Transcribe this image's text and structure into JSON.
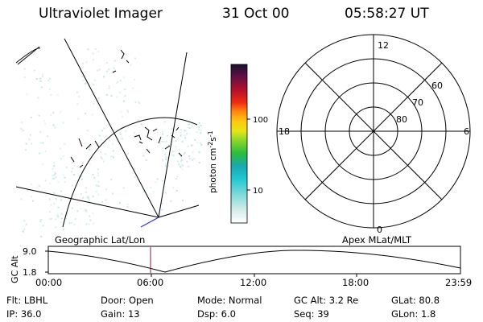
{
  "header": {
    "instrument": "Ultraviolet Imager",
    "date": "31 Oct 00",
    "time": "05:58:27 UT"
  },
  "colorbar": {
    "unit_label": "photon cm",
    "unit_sup1": "-2",
    "unit_s": "s",
    "unit_sup2": "-1",
    "ticks": [
      "10",
      "100"
    ]
  },
  "polar_plot": {
    "mlt_labels": [
      "12",
      "18",
      "6",
      "0"
    ],
    "lat_labels": [
      "60",
      "70",
      "80"
    ]
  },
  "panel_labels": {
    "left": "Geographic Lat/Lon",
    "right": "Apex MLat/MLT"
  },
  "altitude_plot": {
    "ylabel": "GC Alt",
    "yticks": [
      "9.0",
      "1.8"
    ],
    "xticks": [
      "00:00",
      "06:00",
      "12:00",
      "18:00",
      "23:59"
    ]
  },
  "info": {
    "flt": "Flt: LBHL",
    "ip": "IP: 36.0",
    "door": "Door: Open",
    "gain": "Gain: 13",
    "mode": "Mode: Normal",
    "dsp": "Dsp:    6.0",
    "gcalt": "GC Alt: 3.2 Re",
    "seq": "Seq: 39",
    "glat": "GLat:  80.8",
    "glon": "GLon:   1.8"
  },
  "colors": {
    "marker": "#8b1a3a",
    "orbit_trace": "#2a2adf",
    "speckle": "#bfe3e3"
  }
}
